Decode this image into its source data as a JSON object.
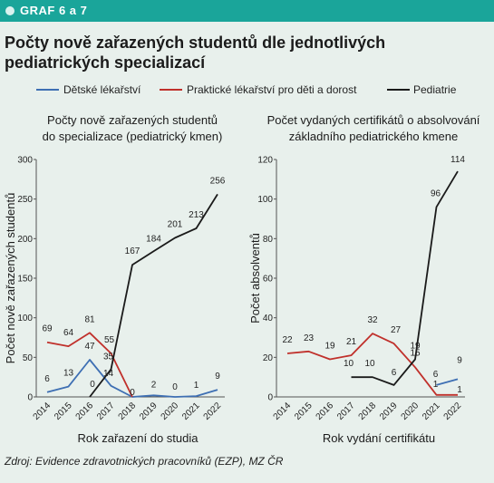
{
  "header": {
    "tag_label": "GRAF 6 a 7",
    "title": "Počty nově zařazených studentů dle jednotlivých pediatrických specializací"
  },
  "legend": [
    {
      "name": "Dětské lékařství",
      "color": "#3e6fb3"
    },
    {
      "name": "Praktické lékařství pro děti a dorost",
      "color": "#c0302b"
    },
    {
      "name": "Pediatrie",
      "color": "#1a1a1a"
    }
  ],
  "source": "Zdroj: Evidence zdravotnických pracovníků (EZP), MZ ČR",
  "chart_data": [
    {
      "type": "line",
      "title": "Počty nově zařazených studentů do specializace (pediatrický kmen)",
      "title_lines": [
        "Počty nově zařazených studentů",
        "do specializace (pediatrický kmen)"
      ],
      "xlabel": "Rok zařazení do studia",
      "ylabel": "Počet nově zařazených studentů",
      "categories": [
        "2014",
        "2015",
        "2016",
        "2017",
        "2018",
        "2019",
        "2020",
        "2021",
        "2022"
      ],
      "ylim": [
        0,
        300
      ],
      "yticks": [
        0,
        50,
        100,
        150,
        200,
        250,
        300
      ],
      "grid": false,
      "legend_position": "top",
      "series": [
        {
          "name": "Dětské lékařství",
          "color": "#3e6fb3",
          "values": [
            6,
            13,
            47,
            14,
            0,
            2,
            0,
            1,
            9
          ]
        },
        {
          "name": "Praktické lékařství pro děti a dorost",
          "color": "#c0302b",
          "values": [
            69,
            64,
            81,
            55,
            0,
            null,
            null,
            null,
            null
          ]
        },
        {
          "name": "Pediatrie",
          "color": "#1a1a1a",
          "values": [
            null,
            null,
            0,
            35,
            167,
            184,
            201,
            213,
            256
          ]
        }
      ],
      "data_labels": [
        {
          "value": "69",
          "series": 1,
          "index": 0
        },
        {
          "value": "6",
          "series": 0,
          "index": 0
        },
        {
          "value": "64",
          "series": 1,
          "index": 1
        },
        {
          "value": "13",
          "series": 0,
          "index": 1
        },
        {
          "value": "81",
          "series": 1,
          "index": 2
        },
        {
          "value": "47",
          "series": 0,
          "index": 2
        },
        {
          "value": "0",
          "series": 2,
          "index": 2
        },
        {
          "value": "55",
          "series": 1,
          "index": 3
        },
        {
          "value": "35",
          "series": 2,
          "index": 3
        },
        {
          "value": "14",
          "series": 0,
          "index": 3
        },
        {
          "value": "0",
          "series": 1,
          "index": 4
        },
        {
          "value": "167",
          "series": 2,
          "index": 4
        },
        {
          "value": "184",
          "series": 2,
          "index": 5
        },
        {
          "value": "2",
          "series": 0,
          "index": 5
        },
        {
          "value": "201",
          "series": 2,
          "index": 6
        },
        {
          "value": "0",
          "series": 0,
          "index": 6
        },
        {
          "value": "213",
          "series": 2,
          "index": 7
        },
        {
          "value": "1",
          "series": 0,
          "index": 7
        },
        {
          "value": "256",
          "series": 2,
          "index": 8
        },
        {
          "value": "9",
          "series": 0,
          "index": 8
        }
      ]
    },
    {
      "type": "line",
      "title": "Počet vydaných certifikátů o absolvování základního pediatrického kmene",
      "title_lines": [
        "Počet vydaných certifikátů o absolvování",
        "základního pediatrického kmene"
      ],
      "xlabel": "Rok vydání certifikátu",
      "ylabel": "Počet absolventů",
      "categories": [
        "2014",
        "2015",
        "2016",
        "2017",
        "2018",
        "2019",
        "2020",
        "2021",
        "2022"
      ],
      "ylim": [
        0,
        120
      ],
      "yticks": [
        0,
        20,
        40,
        60,
        80,
        100,
        120
      ],
      "grid": false,
      "series": [
        {
          "name": "Dětské lékařství",
          "color": "#3e6fb3",
          "values": [
            null,
            null,
            null,
            null,
            null,
            null,
            null,
            6,
            9
          ]
        },
        {
          "name": "Praktické lékařství pro děti a dorost",
          "color": "#c0302b",
          "values": [
            22,
            23,
            19,
            21,
            32,
            27,
            15,
            1,
            1
          ]
        },
        {
          "name": "Pediatrie",
          "color": "#1a1a1a",
          "values": [
            null,
            null,
            null,
            10,
            10,
            6,
            19,
            96,
            114
          ]
        }
      ],
      "data_labels": [
        {
          "value": "22",
          "series": 1,
          "index": 0
        },
        {
          "value": "23",
          "series": 1,
          "index": 1
        },
        {
          "value": "19",
          "series": 1,
          "index": 2
        },
        {
          "value": "21",
          "series": 1,
          "index": 3
        },
        {
          "value": "10",
          "series": 2,
          "index": 3
        },
        {
          "value": "32",
          "series": 1,
          "index": 4
        },
        {
          "value": "10",
          "series": 2,
          "index": 4
        },
        {
          "value": "27",
          "series": 1,
          "index": 5
        },
        {
          "value": "6",
          "series": 2,
          "index": 5
        },
        {
          "value": "19",
          "series": 2,
          "index": 6
        },
        {
          "value": "15",
          "series": 1,
          "index": 6
        },
        {
          "value": "96",
          "series": 2,
          "index": 7
        },
        {
          "value": "6",
          "series": 0,
          "index": 7
        },
        {
          "value": "1",
          "series": 1,
          "index": 7
        },
        {
          "value": "114",
          "series": 2,
          "index": 8
        },
        {
          "value": "9",
          "series": 0,
          "index": 8
        },
        {
          "value": "1",
          "series": 1,
          "index": 8
        }
      ]
    }
  ]
}
